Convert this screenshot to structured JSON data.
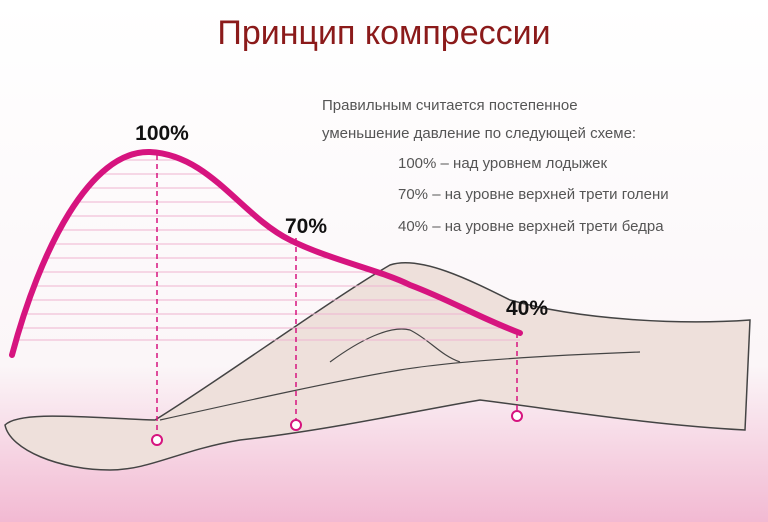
{
  "header": {
    "title": "Принцип компрессии"
  },
  "description": [
    "Правильным считается постепенное",
    "уменьшение давление по следующей схеме:"
  ],
  "items": [
    "100% – над уровнем лодыжек",
    "70% – на уровне верхней трети голени",
    "40% – на уровне верхней трети бедра"
  ],
  "labels": [
    "100%",
    "70%",
    "40%"
  ]
}
